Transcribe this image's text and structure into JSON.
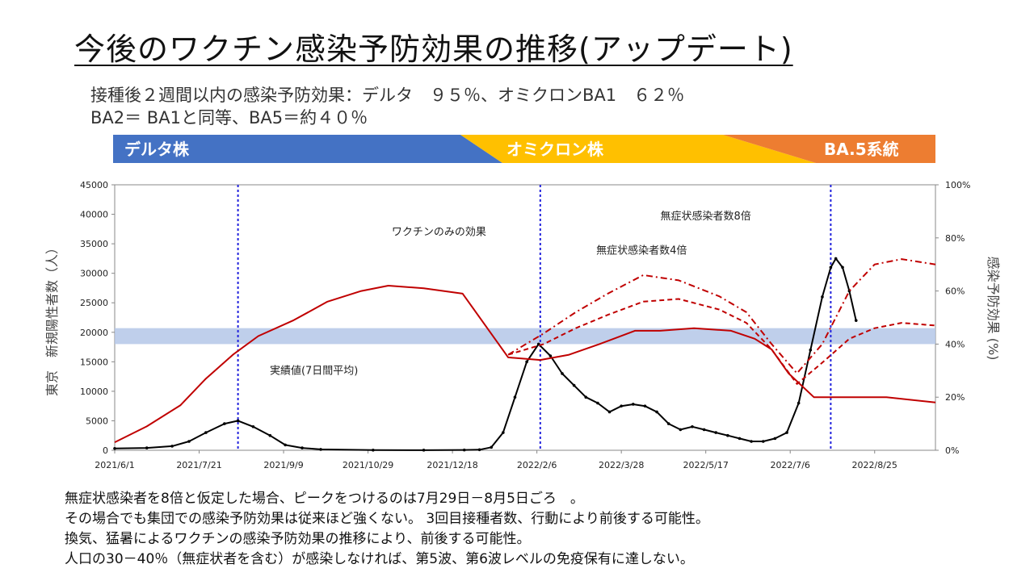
{
  "title": "今後のワクチン感染予防効果の推移(アップデート)",
  "subtitle": {
    "line1": "接種後２週間以内の感染予防効果：デルタ　９５％、オミクロンBA1　６２％",
    "line2": "BA2＝ BA1と同等、BA5＝約４０％"
  },
  "strain_bands": [
    {
      "label": "デルタ株",
      "color": "#4472C4"
    },
    {
      "label": "オミクロン株",
      "color": "#FFC000"
    },
    {
      "label": "BA.5系統",
      "color": "#ED7D31"
    }
  ],
  "notes": [
    "無症状感染者を8倍と仮定した場合、ピークをつけるのは7月29日－8月5日ごろ　。",
    "その場合でも集団での感染予防効果は従来ほど強くない。 3回目接種者数、行動により前後する可能性。",
    "換気、猛暑によるワクチンの感染予防効果の推移により、前後する可能性。",
    "人口の30－40％（無症状者を含む）が感染しなければ、第5波、第6波レベルの免疫保有に達しない。"
  ],
  "chart_data": {
    "type": "line",
    "ylabel": "東京　新規陽性者数（人）",
    "y2label": "感染予防効果 (%)",
    "ylim": [
      0,
      45000
    ],
    "yticks": [
      "0",
      "5000",
      "10000",
      "15000",
      "20000",
      "25000",
      "30000",
      "35000",
      "40000",
      "45000"
    ],
    "y2lim": [
      0,
      100
    ],
    "y2ticks": [
      "0%",
      "20%",
      "40%",
      "60%",
      "80%",
      "100%"
    ],
    "xlim": [
      "2021/6/1",
      "2022/9/30"
    ],
    "xticks": [
      "2021/6/1",
      "2021/7/21",
      "2021/9/9",
      "2021/10/29",
      "2021/12/18",
      "2022/2/6",
      "2022/3/28",
      "2022/5/17",
      "2022/7/6",
      "2022/8/25"
    ],
    "vertical_lines": [
      "2021/8/13",
      "2022/2/8",
      "2022/7/30"
    ],
    "shaded_band_pct": [
      40,
      46
    ],
    "colors": {
      "actual": "#000000",
      "vaccine": "#C00000",
      "band": "#B4C7E7",
      "vline": "#2222DD"
    },
    "annotations": [
      {
        "text": "ワクチンのみの効果",
        "x": "2021/12/10",
        "y2": 81
      },
      {
        "text": "無症状感染者数4倍",
        "x": "2022/4/9",
        "y2": 74
      },
      {
        "text": "無症状感染者数8倍",
        "x": "2022/5/17",
        "y2": 87
      },
      {
        "text": "実績値(7日間平均)",
        "x": "2021/9/27",
        "y": 12900
      }
    ],
    "series": [
      {
        "name": "実績値(7日間平均)",
        "axis": "left",
        "style": "solid",
        "x": [
          "2021/6/1",
          "2021/6/20",
          "2021/7/5",
          "2021/7/15",
          "2021/7/25",
          "2021/8/5",
          "2021/8/13",
          "2021/8/22",
          "2021/9/1",
          "2021/9/10",
          "2021/9/20",
          "2021/10/1",
          "2021/11/1",
          "2021/12/1",
          "2021/12/25",
          "2022/1/3",
          "2022/1/10",
          "2022/1/17",
          "2022/1/24",
          "2022/1/31",
          "2022/2/7",
          "2022/2/14",
          "2022/2/21",
          "2022/2/28",
          "2022/3/7",
          "2022/3/14",
          "2022/3/21",
          "2022/3/28",
          "2022/4/4",
          "2022/4/11",
          "2022/4/18",
          "2022/4/25",
          "2022/5/2",
          "2022/5/9",
          "2022/5/16",
          "2022/5/23",
          "2022/5/30",
          "2022/6/6",
          "2022/6/13",
          "2022/6/20",
          "2022/6/27",
          "2022/7/4",
          "2022/7/11",
          "2022/7/18",
          "2022/7/25",
          "2022/7/30",
          "2022/8/2",
          "2022/8/6",
          "2022/8/10",
          "2022/8/14"
        ],
        "values": [
          300,
          400,
          700,
          1500,
          3000,
          4500,
          5000,
          4000,
          2500,
          900,
          400,
          150,
          30,
          20,
          50,
          100,
          500,
          3000,
          9000,
          15000,
          18000,
          16000,
          13000,
          11000,
          9000,
          8000,
          6500,
          7500,
          7800,
          7500,
          6500,
          4500,
          3500,
          4000,
          3500,
          3000,
          2500,
          2000,
          1500,
          1500,
          2000,
          3000,
          8000,
          17000,
          26000,
          31000,
          32500,
          31000,
          27000,
          22000
        ]
      },
      {
        "name": "ワクチンのみの効果",
        "axis": "right",
        "style": "solid",
        "x": [
          "2021/6/1",
          "2021/6/20",
          "2021/7/10",
          "2021/7/25",
          "2021/8/10",
          "2021/8/25",
          "2021/9/15",
          "2021/10/5",
          "2021/10/25",
          "2021/11/10",
          "2021/12/1",
          "2021/12/24",
          "2022/1/20",
          "2022/2/8",
          "2022/2/25",
          "2022/3/15",
          "2022/4/5",
          "2022/4/20",
          "2022/5/10",
          "2022/6/1",
          "2022/6/15",
          "2022/6/25",
          "2022/7/5",
          "2022/7/20",
          "2022/8/10",
          "2022/9/1",
          "2022/9/30"
        ],
        "values": [
          3,
          9,
          17,
          27,
          36,
          43,
          49,
          56,
          60,
          62,
          61,
          59,
          35,
          34,
          36,
          40,
          45,
          45,
          46,
          45,
          42,
          38,
          29,
          20,
          20,
          20,
          18
        ]
      },
      {
        "name": "無症状感染者数4倍",
        "axis": "right",
        "style": "dashed",
        "x": [
          "2022/1/20",
          "2022/2/10",
          "2022/3/1",
          "2022/3/20",
          "2022/4/10",
          "2022/5/1",
          "2022/5/25",
          "2022/6/10",
          "2022/6/25",
          "2022/7/10",
          "2022/7/25",
          "2022/8/10",
          "2022/8/25",
          "2022/9/10",
          "2022/9/30"
        ],
        "values": [
          36,
          40,
          46,
          51,
          56,
          57,
          53,
          48,
          38,
          25,
          33,
          42,
          46,
          48,
          47
        ]
      },
      {
        "name": "無症状感染者数8倍",
        "axis": "right",
        "style": "dashdot",
        "x": [
          "2022/1/20",
          "2022/2/10",
          "2022/3/1",
          "2022/3/20",
          "2022/4/10",
          "2022/5/1",
          "2022/5/25",
          "2022/6/10",
          "2022/6/25",
          "2022/7/10",
          "2022/7/25",
          "2022/8/10",
          "2022/8/25",
          "2022/9/10",
          "2022/9/30"
        ],
        "values": [
          36,
          44,
          52,
          59,
          66,
          64,
          58,
          52,
          40,
          29,
          40,
          60,
          70,
          72,
          70
        ]
      }
    ]
  }
}
